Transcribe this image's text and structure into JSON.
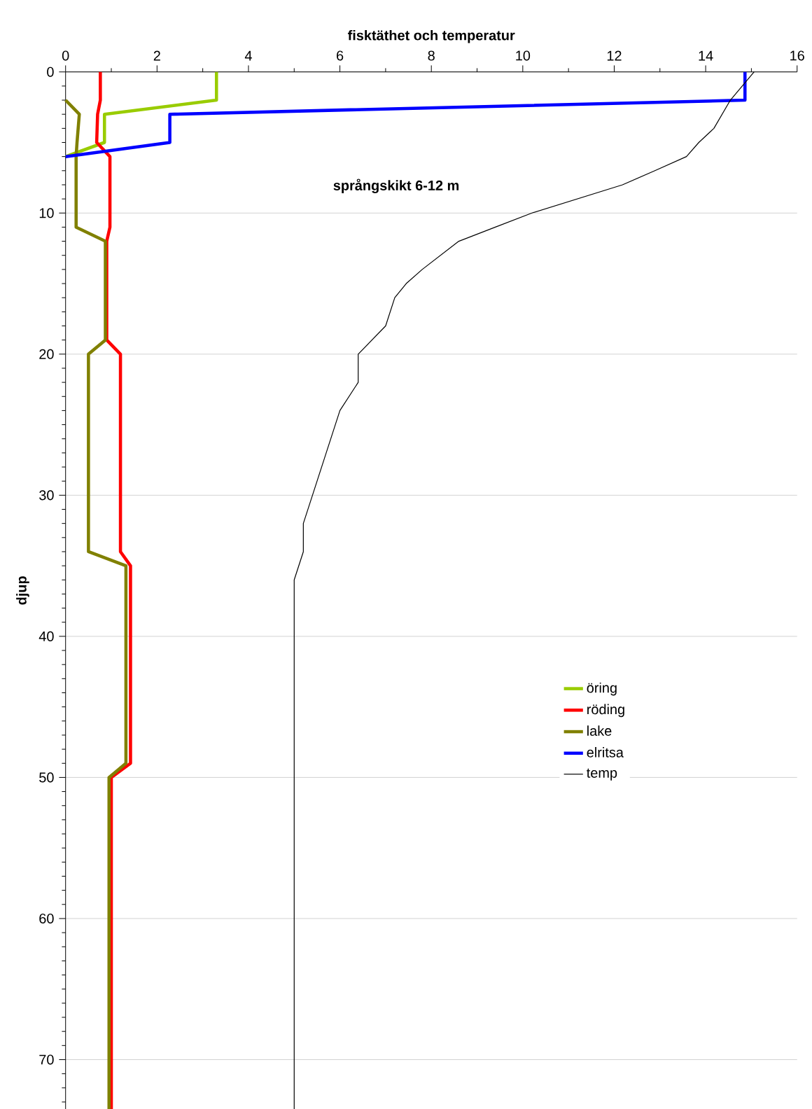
{
  "chart_data": {
    "type": "line",
    "xlabel": "fisktäthet och temperatur",
    "ylabel": "djup",
    "annotations": [
      "språngskikt 6-12 m"
    ],
    "xlim": [
      0,
      16
    ],
    "ylim": [
      73.5,
      0
    ],
    "xticks": [
      0,
      {
        "value": 1,
        "label": null
      },
      2,
      {
        "value": 3,
        "label": null
      },
      4,
      {
        "value": 5,
        "label": null
      },
      6,
      {
        "value": 7,
        "label": null
      },
      8,
      {
        "value": 9,
        "label": null
      },
      10,
      {
        "value": 11,
        "label": null
      },
      12,
      {
        "value": 13,
        "label": null
      },
      14,
      {
        "value": 15,
        "label": null
      },
      16
    ],
    "yticks": [
      0,
      {
        "value": 1,
        "label": null
      },
      {
        "value": 2,
        "label": null
      },
      {
        "value": 3,
        "label": null
      },
      {
        "value": 4,
        "label": null
      },
      {
        "value": 5,
        "label": null
      },
      {
        "value": 6,
        "label": null
      },
      {
        "value": 7,
        "label": null
      },
      {
        "value": 8,
        "label": null
      },
      {
        "value": 9,
        "label": null
      },
      10,
      {
        "value": 11,
        "label": null
      },
      {
        "value": 12,
        "label": null
      },
      {
        "value": 13,
        "label": null
      },
      {
        "value": 14,
        "label": null
      },
      {
        "value": 15,
        "label": null
      },
      {
        "value": 16,
        "label": null
      },
      {
        "value": 17,
        "label": null
      },
      {
        "value": 18,
        "label": null
      },
      {
        "value": 19,
        "label": null
      },
      20,
      {
        "value": 21,
        "label": null
      },
      {
        "value": 22,
        "label": null
      },
      {
        "value": 23,
        "label": null
      },
      {
        "value": 24,
        "label": null
      },
      {
        "value": 25,
        "label": null
      },
      {
        "value": 26,
        "label": null
      },
      {
        "value": 27,
        "label": null
      },
      {
        "value": 28,
        "label": null
      },
      {
        "value": 29,
        "label": null
      },
      30,
      {
        "value": 31,
        "label": null
      },
      {
        "value": 32,
        "label": null
      },
      {
        "value": 33,
        "label": null
      },
      {
        "value": 34,
        "label": null
      },
      {
        "value": 35,
        "label": null
      },
      {
        "value": 36,
        "label": null
      },
      {
        "value": 37,
        "label": null
      },
      {
        "value": 38,
        "label": null
      },
      {
        "value": 39,
        "label": null
      },
      40,
      {
        "value": 41,
        "label": null
      },
      {
        "value": 42,
        "label": null
      },
      {
        "value": 43,
        "label": null
      },
      {
        "value": 44,
        "label": null
      },
      {
        "value": 45,
        "label": null
      },
      {
        "value": 46,
        "label": null
      },
      {
        "value": 47,
        "label": null
      },
      {
        "value": 48,
        "label": null
      },
      {
        "value": 49,
        "label": null
      },
      50,
      {
        "value": 51,
        "label": null
      },
      {
        "value": 52,
        "label": null
      },
      {
        "value": 53,
        "label": null
      },
      {
        "value": 54,
        "label": null
      },
      {
        "value": 55,
        "label": null
      },
      {
        "value": 56,
        "label": null
      },
      {
        "value": 57,
        "label": null
      },
      {
        "value": 58,
        "label": null
      },
      {
        "value": 59,
        "label": null
      },
      60,
      {
        "value": 61,
        "label": null
      },
      {
        "value": 62,
        "label": null
      },
      {
        "value": 63,
        "label": null
      },
      {
        "value": 64,
        "label": null
      },
      {
        "value": 65,
        "label": null
      },
      {
        "value": 66,
        "label": null
      },
      {
        "value": 67,
        "label": null
      },
      {
        "value": 68,
        "label": null
      },
      {
        "value": 69,
        "label": null
      },
      70,
      {
        "value": 71,
        "label": null
      },
      {
        "value": 72,
        "label": null
      },
      {
        "value": 73,
        "label": null
      }
    ],
    "grid": "y",
    "legend": "right",
    "series": [
      {
        "name": "öring",
        "color": "#99cc00",
        "x": [
          3.3,
          3.3,
          0.85,
          0.85,
          0
        ],
        "values": [
          0,
          2,
          3,
          5,
          6
        ]
      },
      {
        "name": "röding",
        "color": "#ff0000",
        "x": [
          0.76,
          0.76,
          0.7,
          0.68,
          0.97,
          0.97,
          0.9,
          0.9,
          1.2,
          1.2,
          1.42,
          1.42,
          1.0,
          1.0
        ],
        "values": [
          0,
          2,
          3,
          5,
          6,
          11,
          12,
          19,
          20,
          34,
          35,
          49,
          50,
          73.5
        ]
      },
      {
        "name": "lake",
        "color": "#808000",
        "x": [
          0,
          0.3,
          0.25,
          0.23,
          0.23,
          0.87,
          0.87,
          0.5,
          0.5,
          1.32,
          1.32,
          0.95,
          0.95
        ],
        "values": [
          2,
          3,
          5,
          6,
          11,
          12,
          19,
          20,
          34,
          35,
          49,
          50,
          73.5
        ]
      },
      {
        "name": "elritsa",
        "color": "#0000ff",
        "x": [
          14.86,
          14.86,
          2.28,
          2.28,
          0
        ],
        "values": [
          0,
          2,
          3,
          5,
          6
        ]
      },
      {
        "name": "temp",
        "color": "#000000",
        "x": [
          15.06,
          14.54,
          14.18,
          13.85,
          13.58,
          12.89,
          12.18,
          10.2,
          9.4,
          8.6,
          7.8,
          7.45,
          7.2,
          7.0,
          6.4,
          6.4,
          6.0,
          5.8,
          5.6,
          5.4,
          5.2,
          5.2,
          5.0,
          5.0
        ],
        "values": [
          0,
          2,
          4,
          5,
          6,
          7,
          8,
          10,
          11,
          12,
          14,
          15,
          16,
          18,
          20,
          22,
          24,
          26,
          28,
          30,
          32,
          34,
          36,
          73.5
        ]
      }
    ]
  }
}
